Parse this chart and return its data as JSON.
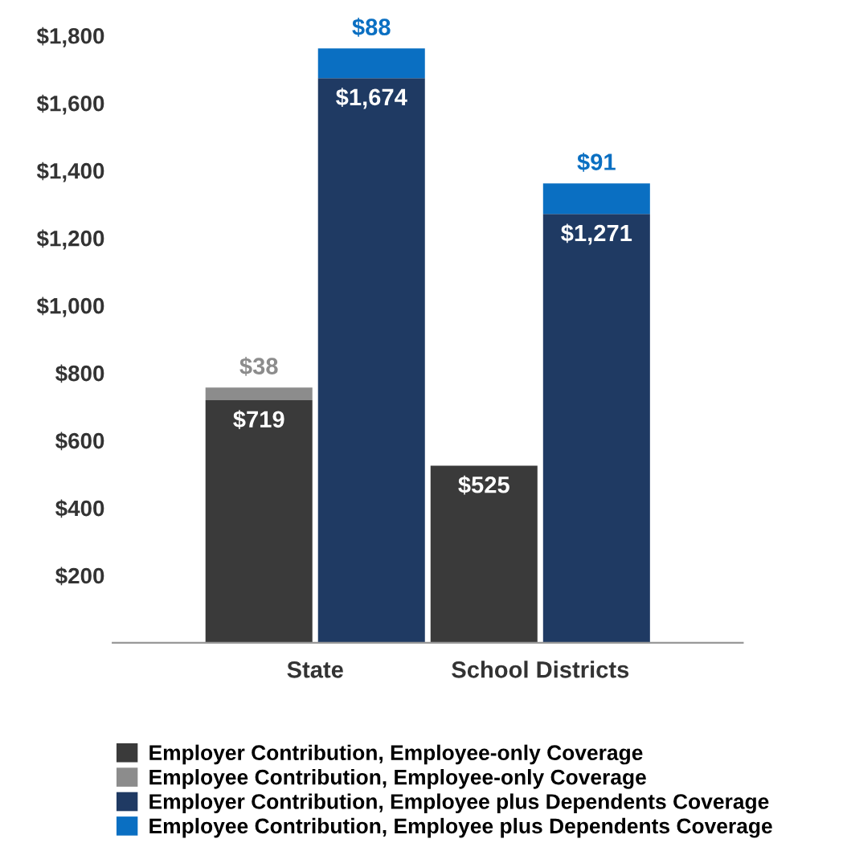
{
  "chart_data": {
    "type": "bar",
    "stacked": true,
    "categories": [
      null,
      null,
      null,
      null
    ],
    "annotations": [
      "State",
      "School Districts"
    ],
    "series": [
      {
        "name": "Employer Contribution, Employee-only Coverage",
        "color": "#3a3a3a",
        "values": [
          719,
          null,
          525,
          null
        ],
        "value_labels": [
          "$719",
          null,
          "$525",
          null
        ]
      },
      {
        "name": "Employee Contribution, Employee-only Coverage",
        "color": "#8c8c8c",
        "values": [
          38,
          null,
          null,
          null
        ],
        "value_labels": [
          "$38",
          null,
          null,
          null
        ]
      },
      {
        "name": "Employer Contribution, Employee plus Dependents Coverage",
        "color": "#1f3a63",
        "values": [
          null,
          1674,
          null,
          1271
        ],
        "value_labels": [
          null,
          "$1,674",
          null,
          "$1,271"
        ]
      },
      {
        "name": "Employee Contribution, Employee plus Dependents Coverage",
        "color": "#0a6fc2",
        "values": [
          null,
          88,
          null,
          91
        ],
        "value_labels": [
          null,
          "$88",
          null,
          "$91"
        ]
      }
    ],
    "ylim": [
      0,
      1800
    ],
    "yticks": [
      {
        "value": 200,
        "label": "$200"
      },
      {
        "value": 400,
        "label": "$400"
      },
      {
        "value": 600,
        "label": "$600"
      },
      {
        "value": 800,
        "label": "$800"
      },
      {
        "value": 1000,
        "label": "$1,000"
      },
      {
        "value": 1200,
        "label": "$1,200"
      },
      {
        "value": 1400,
        "label": "$1,400"
      },
      {
        "value": 1600,
        "label": "$1,600"
      },
      {
        "value": 1800,
        "label": "$1,800"
      }
    ],
    "grid": false,
    "legend": "bottom"
  }
}
